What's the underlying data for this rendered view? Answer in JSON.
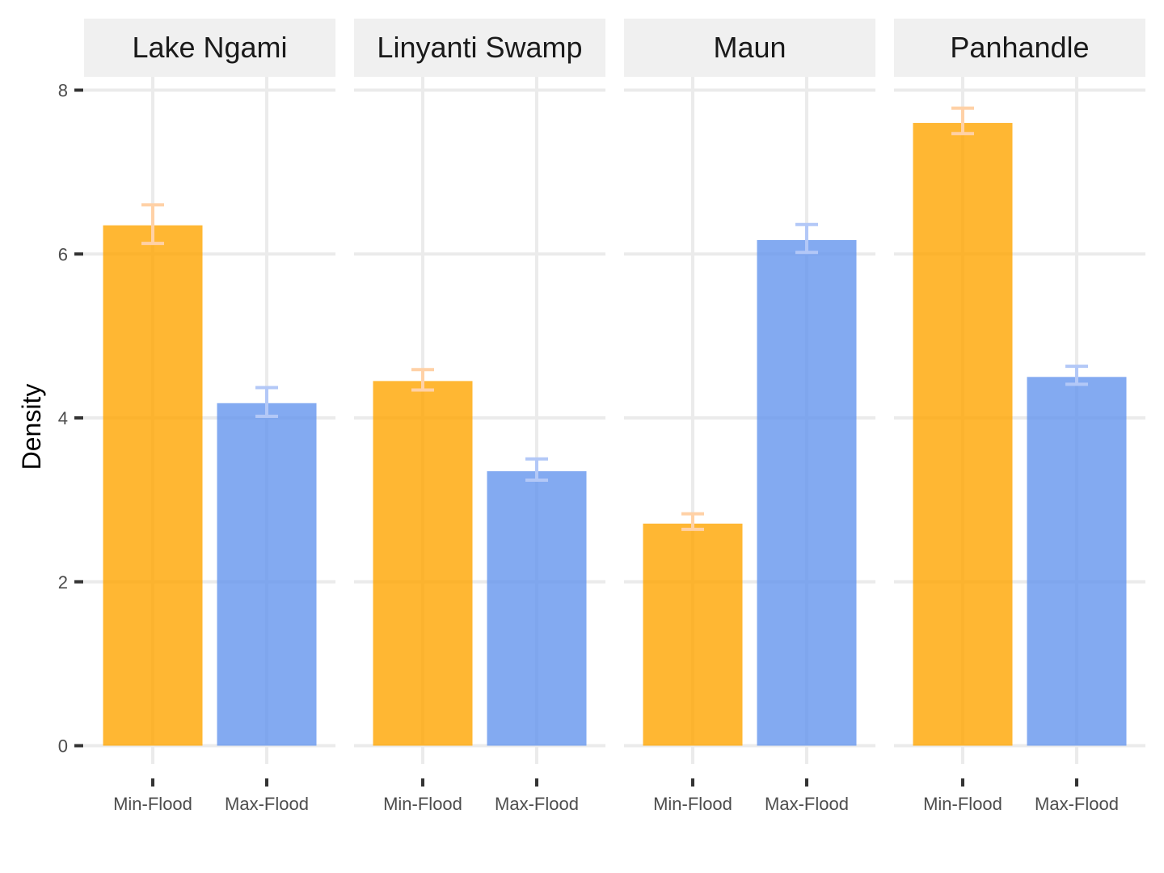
{
  "chart_data": {
    "type": "bar",
    "facets": [
      "Lake Ngami",
      "Linyanti Swamp",
      "Maun",
      "Panhandle"
    ],
    "categories": [
      "Min-Flood",
      "Max-Flood"
    ],
    "ylabel": "Density",
    "xlabel": "",
    "ylim": [
      0,
      8
    ],
    "yticks": [
      "0",
      "2",
      "4",
      "6",
      "8"
    ],
    "grid": true,
    "legend": "none",
    "colors": {
      "Min-Flood": "#FFA500",
      "Max-Flood": "#6495ED",
      "Min-Flood-error": "#FFD1A6",
      "Max-Flood-error": "#B3C8F7",
      "grid": "#EBEBEB",
      "strip": "#F0F0F0"
    },
    "data": [
      {
        "facet": "Lake Ngami",
        "values": [
          {
            "category": "Min-Flood",
            "value": 6.35,
            "lower": 6.13,
            "upper": 6.6
          },
          {
            "category": "Max-Flood",
            "value": 4.18,
            "lower": 4.02,
            "upper": 4.37
          }
        ]
      },
      {
        "facet": "Linyanti Swamp",
        "values": [
          {
            "category": "Min-Flood",
            "value": 4.45,
            "lower": 4.34,
            "upper": 4.59
          },
          {
            "category": "Max-Flood",
            "value": 3.35,
            "lower": 3.24,
            "upper": 3.5
          }
        ]
      },
      {
        "facet": "Maun",
        "values": [
          {
            "category": "Min-Flood",
            "value": 2.71,
            "lower": 2.64,
            "upper": 2.83
          },
          {
            "category": "Max-Flood",
            "value": 6.17,
            "lower": 6.02,
            "upper": 6.36
          }
        ]
      },
      {
        "facet": "Panhandle",
        "values": [
          {
            "category": "Min-Flood",
            "value": 7.6,
            "lower": 7.47,
            "upper": 7.78
          },
          {
            "category": "Max-Flood",
            "value": 4.5,
            "lower": 4.41,
            "upper": 4.63
          }
        ]
      }
    ]
  }
}
